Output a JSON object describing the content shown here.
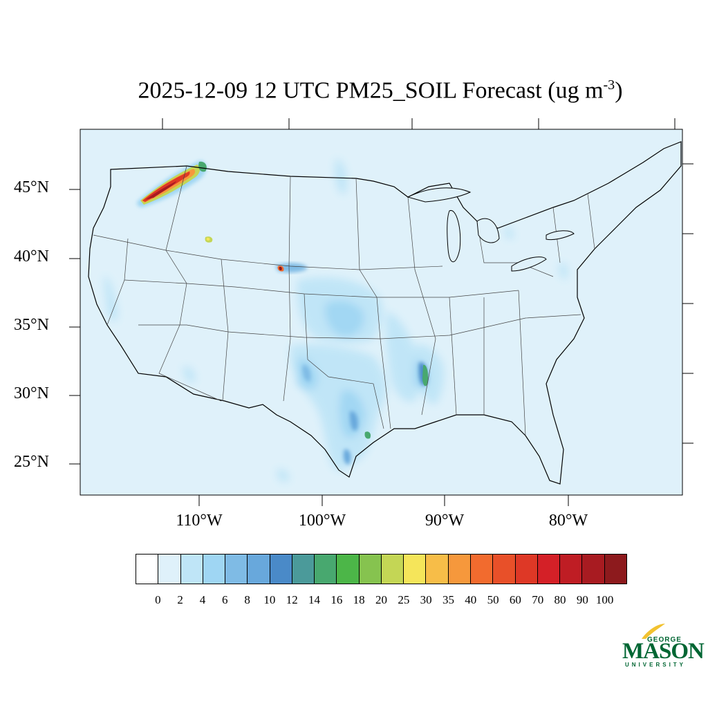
{
  "title": {
    "text": "2025-12-09 12 UTC PM25_SOIL Forecast (ug m",
    "superscript": "-3",
    "close": ")"
  },
  "map": {
    "region": "Contiguous United States",
    "projection": "Lambert conformal",
    "background_color": "#dff1fa",
    "latitude_labels": [
      "45°N",
      "40°N",
      "35°N",
      "30°N",
      "25°N"
    ],
    "longitude_labels": [
      "110°W",
      "100°W",
      "90°W",
      "80°W"
    ],
    "hotspots": [
      {
        "location": "NE Oregon / Columbia Basin",
        "max_value_bin": "100"
      },
      {
        "location": "NE Colorado",
        "max_value_bin": "100"
      },
      {
        "location": "SE Idaho",
        "max_value_bin": "25"
      },
      {
        "location": "Mississippi Delta",
        "max_value_bin": "18"
      },
      {
        "location": "SE Texas coast",
        "max_value_bin": "16"
      }
    ]
  },
  "colorbar": {
    "labels": [
      "0",
      "2",
      "4",
      "6",
      "8",
      "10",
      "12",
      "14",
      "16",
      "18",
      "20",
      "25",
      "30",
      "35",
      "40",
      "50",
      "60",
      "70",
      "80",
      "90",
      "100"
    ],
    "colors": [
      "#ffffff",
      "#dff1fa",
      "#bfe5f7",
      "#9fd6f3",
      "#7fbbe5",
      "#68a8dc",
      "#4a8ac8",
      "#4b9a9a",
      "#48a86f",
      "#4cb648",
      "#86c34f",
      "#c4d655",
      "#f5e55a",
      "#f7bd48",
      "#f6983c",
      "#f26b2e",
      "#e85029",
      "#de3826",
      "#d42027",
      "#bf1d24",
      "#a81b21",
      "#8d1a1d"
    ]
  },
  "logo": {
    "top": "GEORGE",
    "main": "MASON",
    "bottom": "UNIVERSITY"
  }
}
